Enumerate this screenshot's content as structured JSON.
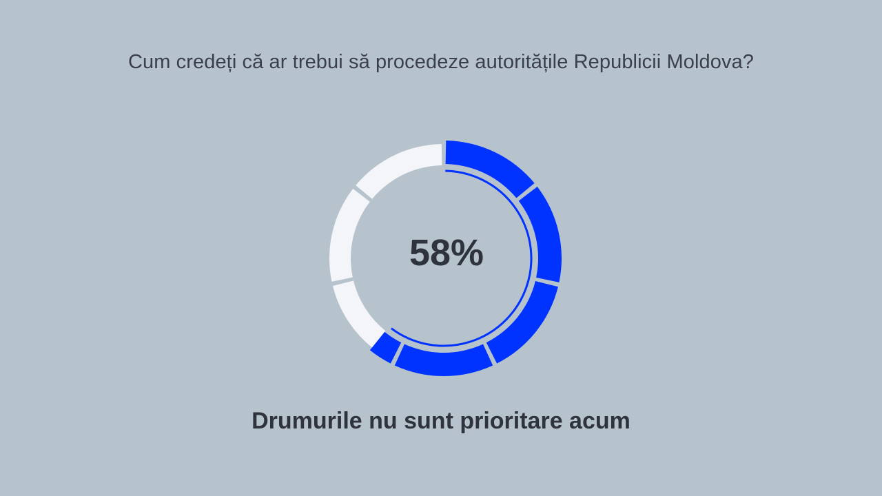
{
  "question": "Cum credeți că ar trebui să procedeze autoritățile Republicii Moldova?",
  "chart_data": {
    "type": "pie",
    "style": "donut",
    "highlighted_value_label": "58%",
    "highlighted_value": 58,
    "answer_label": "Drumurile nu sunt prioritare acum",
    "total_segments": 7,
    "colors": {
      "filled": "#0033ff",
      "empty": "#f3f5f9",
      "background": "#b6c3cc",
      "text": "#2f333d"
    }
  }
}
